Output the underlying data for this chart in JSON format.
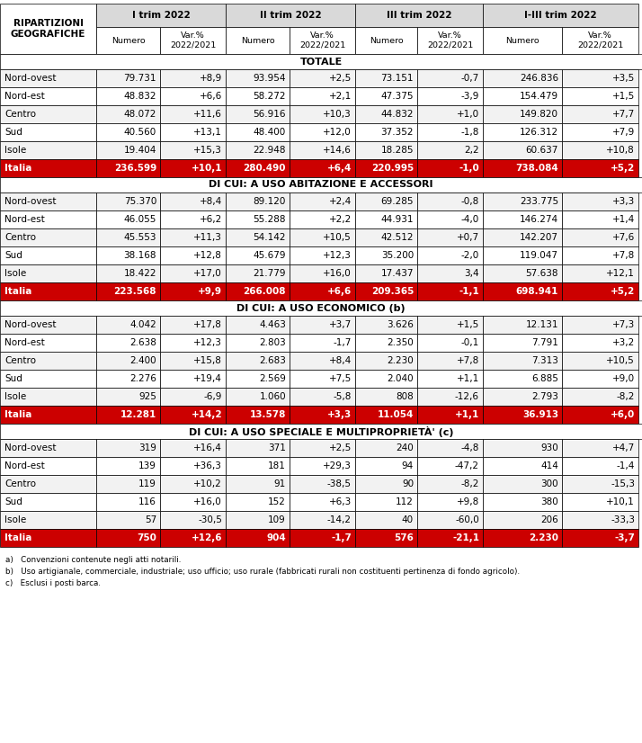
{
  "sections": [
    {
      "title": "TOTALE",
      "rows": [
        [
          "Nord-ovest",
          "79.731",
          "+8,9",
          "93.954",
          "+2,5",
          "73.151",
          "-0,7",
          "246.836",
          "+3,5"
        ],
        [
          "Nord-est",
          "48.832",
          "+6,6",
          "58.272",
          "+2,1",
          "47.375",
          "-3,9",
          "154.479",
          "+1,5"
        ],
        [
          "Centro",
          "48.072",
          "+11,6",
          "56.916",
          "+10,3",
          "44.832",
          "+1,0",
          "149.820",
          "+7,7"
        ],
        [
          "Sud",
          "40.560",
          "+13,1",
          "48.400",
          "+12,0",
          "37.352",
          "-1,8",
          "126.312",
          "+7,9"
        ],
        [
          "Isole",
          "19.404",
          "+15,3",
          "22.948",
          "+14,6",
          "18.285",
          "2,2",
          "60.637",
          "+10,8"
        ]
      ],
      "italia_row": [
        "Italia",
        "236.599",
        "+10,1",
        "280.490",
        "+6,4",
        "220.995",
        "-1,0",
        "738.084",
        "+5,2"
      ]
    },
    {
      "title": "DI CUI: A USO ABITAZIONE E ACCESSORI",
      "rows": [
        [
          "Nord-ovest",
          "75.370",
          "+8,4",
          "89.120",
          "+2,4",
          "69.285",
          "-0,8",
          "233.775",
          "+3,3"
        ],
        [
          "Nord-est",
          "46.055",
          "+6,2",
          "55.288",
          "+2,2",
          "44.931",
          "-4,0",
          "146.274",
          "+1,4"
        ],
        [
          "Centro",
          "45.553",
          "+11,3",
          "54.142",
          "+10,5",
          "42.512",
          "+0,7",
          "142.207",
          "+7,6"
        ],
        [
          "Sud",
          "38.168",
          "+12,8",
          "45.679",
          "+12,3",
          "35.200",
          "-2,0",
          "119.047",
          "+7,8"
        ],
        [
          "Isole",
          "18.422",
          "+17,0",
          "21.779",
          "+16,0",
          "17.437",
          "3,4",
          "57.638",
          "+12,1"
        ]
      ],
      "italia_row": [
        "Italia",
        "223.568",
        "+9,9",
        "266.008",
        "+6,6",
        "209.365",
        "-1,1",
        "698.941",
        "+5,2"
      ]
    },
    {
      "title": "DI CUI: A USO ECONOMICO (b)",
      "rows": [
        [
          "Nord-ovest",
          "4.042",
          "+17,8",
          "4.463",
          "+3,7",
          "3.626",
          "+1,5",
          "12.131",
          "+7,3"
        ],
        [
          "Nord-est",
          "2.638",
          "+12,3",
          "2.803",
          "-1,7",
          "2.350",
          "-0,1",
          "7.791",
          "+3,2"
        ],
        [
          "Centro",
          "2.400",
          "+15,8",
          "2.683",
          "+8,4",
          "2.230",
          "+7,8",
          "7.313",
          "+10,5"
        ],
        [
          "Sud",
          "2.276",
          "+19,4",
          "2.569",
          "+7,5",
          "2.040",
          "+1,1",
          "6.885",
          "+9,0"
        ],
        [
          "Isole",
          "925",
          "-6,9",
          "1.060",
          "-5,8",
          "808",
          "-12,6",
          "2.793",
          "-8,2"
        ]
      ],
      "italia_row": [
        "Italia",
        "12.281",
        "+14,2",
        "13.578",
        "+3,3",
        "11.054",
        "+1,1",
        "36.913",
        "+6,0"
      ]
    },
    {
      "title": "DI CUI: A USO SPECIALE E MULTIPROPRIETÀ' (c)",
      "rows": [
        [
          "Nord-ovest",
          "319",
          "+16,4",
          "371",
          "+2,5",
          "240",
          "-4,8",
          "930",
          "+4,7"
        ],
        [
          "Nord-est",
          "139",
          "+36,3",
          "181",
          "+29,3",
          "94",
          "-47,2",
          "414",
          "-1,4"
        ],
        [
          "Centro",
          "119",
          "+10,2",
          "91",
          "-38,5",
          "90",
          "-8,2",
          "300",
          "-15,3"
        ],
        [
          "Sud",
          "116",
          "+16,0",
          "152",
          "+6,3",
          "112",
          "+9,8",
          "380",
          "+10,1"
        ],
        [
          "Isole",
          "57",
          "-30,5",
          "109",
          "-14,2",
          "40",
          "-60,0",
          "206",
          "-33,3"
        ]
      ],
      "italia_row": [
        "Italia",
        "750",
        "+12,6",
        "904",
        "-1,7",
        "576",
        "-21,1",
        "2.230",
        "-3,7"
      ]
    }
  ],
  "footnotes": [
    "a)   Convenzioni contenute negli atti notarili.",
    "b)   Uso artigianale, commerciale, industriale; uso ufficio; uso rurale (fabbricati rurali non costituenti pertinenza di fondo agricolo).",
    "c)   Esclusi i posti barca."
  ],
  "quarter_labels": [
    "I trim 2022",
    "II trim 2022",
    "III trim 2022",
    "I-III trim 2022"
  ],
  "col_header_bg": "#d9d9d9",
  "row_alt1_bg": "#f2f2f2",
  "row_alt2_bg": "#ffffff",
  "italia_bg": "#cc0000",
  "italia_fg": "#ffffff",
  "border_color": "#000000"
}
